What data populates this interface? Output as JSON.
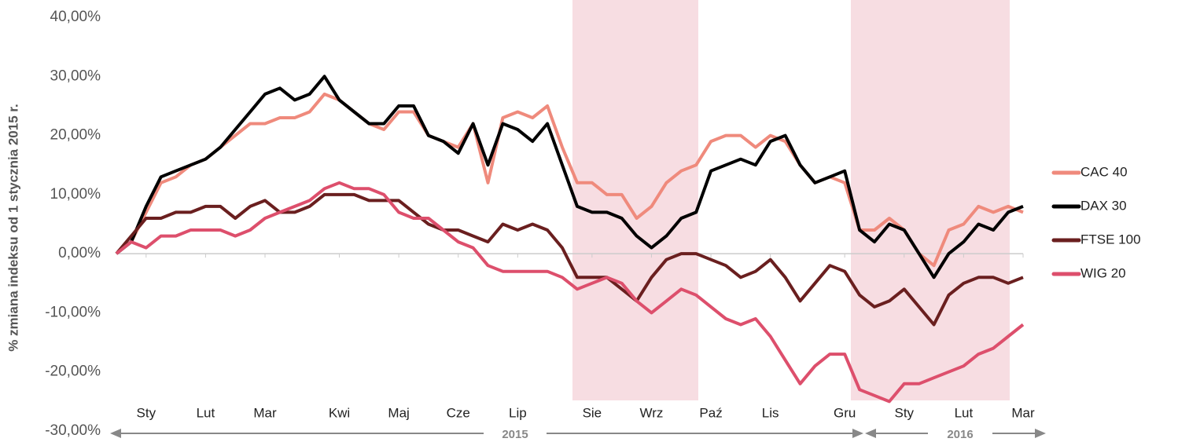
{
  "chart_data": {
    "type": "line",
    "y_label": "% zmiana indeksu od 1 stycznia 2015 r.",
    "annotations": [
      "2015",
      "2016"
    ],
    "categories": [
      null,
      null,
      "Sty",
      null,
      null,
      null,
      "Lut",
      null,
      null,
      null,
      "Mar",
      null,
      null,
      null,
      null,
      "Kwi",
      null,
      null,
      null,
      "Maj",
      null,
      null,
      null,
      "Cze",
      null,
      null,
      null,
      "Lip",
      null,
      null,
      null,
      null,
      "Sie",
      null,
      null,
      null,
      "Wrz",
      null,
      null,
      null,
      "Paź",
      null,
      null,
      null,
      "Lis",
      null,
      null,
      null,
      null,
      "Gru",
      null,
      null,
      null,
      "Sty",
      null,
      null,
      null,
      "Lut",
      null,
      null,
      null,
      "Mar"
    ],
    "series": [
      {
        "name": "CAC 40",
        "color": "#ef8a7c",
        "values": [
          0,
          2,
          7,
          12,
          13,
          15,
          16,
          18,
          20,
          22,
          22,
          23,
          23,
          24,
          27,
          26,
          24,
          22,
          21,
          24,
          24,
          20,
          19,
          18,
          22,
          12,
          23,
          24,
          23,
          25,
          18,
          12,
          12,
          10,
          10,
          6,
          8,
          12,
          14,
          15,
          19,
          20,
          20,
          18,
          20,
          19,
          15,
          12,
          13,
          12,
          4,
          4,
          6,
          4,
          0,
          -2,
          4,
          5,
          8,
          7,
          8,
          7
        ]
      },
      {
        "name": "DAX 30",
        "color": "#000000",
        "values": [
          0,
          2,
          8,
          13,
          14,
          15,
          16,
          18,
          21,
          24,
          27,
          28,
          26,
          27,
          30,
          26,
          24,
          22,
          22,
          25,
          25,
          20,
          19,
          17,
          22,
          15,
          22,
          21,
          19,
          22,
          15,
          8,
          7,
          7,
          6,
          3,
          1,
          3,
          6,
          7,
          14,
          15,
          16,
          15,
          19,
          20,
          15,
          12,
          13,
          14,
          4,
          2,
          5,
          4,
          0,
          -4,
          0,
          2,
          5,
          4,
          7,
          8
        ]
      },
      {
        "name": "FTSE 100",
        "color": "#6a1f1f",
        "values": [
          0,
          3,
          6,
          6,
          7,
          7,
          8,
          8,
          6,
          8,
          9,
          7,
          7,
          8,
          10,
          10,
          10,
          9,
          9,
          9,
          7,
          5,
          4,
          4,
          3,
          2,
          5,
          4,
          5,
          4,
          1,
          -4,
          -4,
          -4,
          -6,
          -8,
          -4,
          -1,
          0,
          0,
          -1,
          -2,
          -4,
          -3,
          -1,
          -4,
          -8,
          -5,
          -2,
          -3,
          -7,
          -9,
          -8,
          -6,
          -9,
          -12,
          -7,
          -5,
          -4,
          -4,
          -5,
          -4
        ]
      },
      {
        "name": "WIG 20",
        "color": "#dd4f6c",
        "values": [
          0,
          2,
          1,
          3,
          3,
          4,
          4,
          4,
          3,
          4,
          6,
          7,
          8,
          9,
          11,
          12,
          11,
          11,
          10,
          7,
          6,
          6,
          4,
          2,
          1,
          -2,
          -3,
          -3,
          -3,
          -3,
          -4,
          -6,
          -5,
          -4,
          -5,
          -8,
          -10,
          -8,
          -6,
          -7,
          -9,
          -11,
          -12,
          -11,
          -14,
          -18,
          -22,
          -19,
          -17,
          -17,
          -23,
          -24,
          -25,
          -22,
          -22,
          -21,
          -20,
          -19,
          -17,
          -16,
          -14,
          -12
        ]
      }
    ],
    "ylim": [
      -30,
      40
    ],
    "yticks": [
      {
        "value": -30,
        "label": "-30,00%"
      },
      {
        "value": -20,
        "label": "-20,00%"
      },
      {
        "value": -10,
        "label": "-10,00%"
      },
      {
        "value": 0,
        "label": "0,00%"
      },
      {
        "value": 10,
        "label": "10,00%"
      },
      {
        "value": 20,
        "label": "20,00%"
      },
      {
        "value": 30,
        "label": "30,00%"
      },
      {
        "value": 40,
        "label": "40,00%"
      }
    ],
    "legend": "right"
  }
}
